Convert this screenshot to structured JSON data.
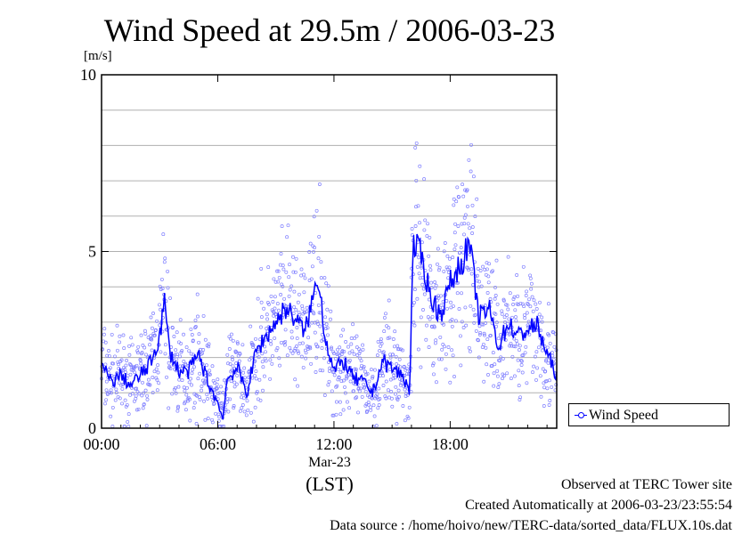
{
  "chart_data": {
    "type": "line",
    "title": "Wind Speed at 29.5m / 2006-03-23",
    "ylabel": "[m/s]",
    "xlabel_date": "Mar-23",
    "xlabel_unit": "(LST)",
    "ylim": [
      0,
      10
    ],
    "xlim": [
      0,
      23.5
    ],
    "yticks": [
      0,
      5,
      10
    ],
    "ytick_labels": [
      "0",
      "5",
      "10"
    ],
    "xticks": [
      0,
      6,
      12,
      18
    ],
    "xtick_labels": [
      "00:00",
      "06:00",
      "12:00",
      "18:00"
    ],
    "grid": true,
    "legend_position": "bottom-right",
    "series": [
      {
        "name": "Wind Speed",
        "color": "#0000ff",
        "scatter_color": "#8080ff",
        "x": [
          0,
          0.5,
          1,
          1.5,
          2,
          2.5,
          3,
          3.25,
          3.5,
          4,
          4.5,
          5,
          5.5,
          6,
          6.25,
          6.5,
          7,
          7.5,
          8,
          8.5,
          9,
          9.5,
          10,
          10.5,
          11,
          11.25,
          11.5,
          12,
          12.5,
          13,
          13.5,
          14,
          14.5,
          15,
          15.5,
          15.9,
          16.1,
          16.5,
          17,
          17.5,
          18,
          18.5,
          19,
          19.5,
          20,
          20.5,
          21,
          21.5,
          22,
          22.5,
          23,
          23.4
        ],
        "values": [
          1.8,
          1.3,
          1.5,
          1.2,
          1.5,
          1.8,
          2.6,
          3.6,
          2.2,
          1.6,
          1.6,
          2.1,
          1.3,
          0.7,
          0.3,
          1.4,
          1.7,
          1.0,
          2.2,
          2.6,
          3.0,
          3.4,
          3.1,
          2.7,
          3.9,
          4.2,
          2.7,
          1.6,
          1.9,
          1.4,
          1.3,
          1.0,
          1.9,
          1.7,
          1.5,
          1.1,
          5.2,
          4.9,
          3.7,
          3.2,
          4.1,
          4.6,
          5.2,
          3.1,
          3.4,
          2.3,
          3.0,
          2.6,
          2.8,
          2.9,
          2.1,
          1.6
        ]
      }
    ]
  },
  "footer": {
    "line1": "Observed at TERC Tower site",
    "line2": "Created Automatically at 2006-03-23/23:55:54",
    "line3": "Data source : /home/hoivo/new/TERC-data/sorted_data/FLUX.10s.dat"
  }
}
